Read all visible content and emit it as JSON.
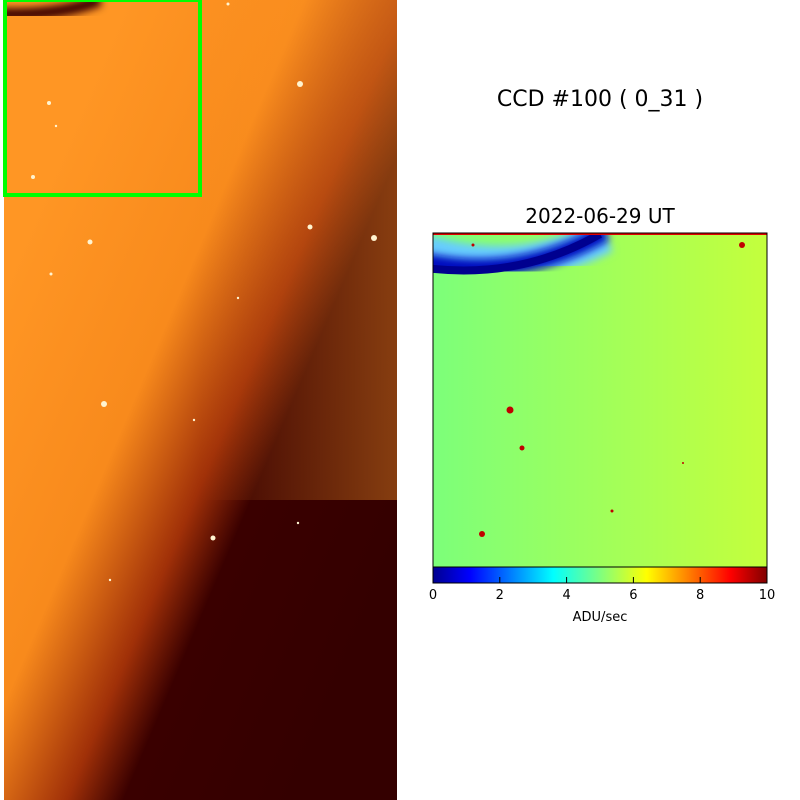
{
  "title": "CCD #100 ( 0_31 )",
  "subtitle": "2022-06-29 UT",
  "chart_data": {
    "type": "heatmap",
    "title": "2022-06-29 UT",
    "colormap": "jet",
    "colorbar": {
      "label": "ADU/sec",
      "range": [
        0,
        10
      ],
      "ticks": [
        "0",
        "2",
        "4",
        "6",
        "8",
        "10"
      ],
      "orientation": "horizontal"
    }
  },
  "colors": {
    "highlight_box": "#00ff00",
    "left_image_base": "#ff9422",
    "left_image_dark": "#3a0000"
  }
}
